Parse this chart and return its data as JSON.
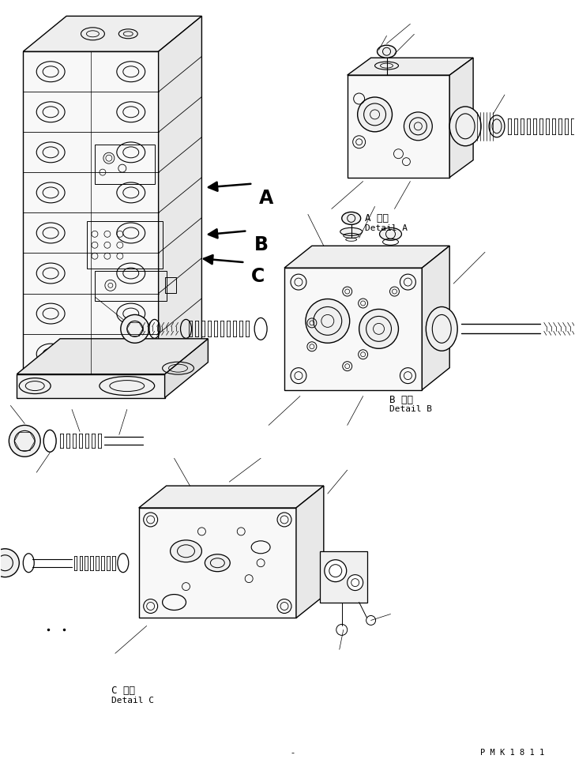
{
  "background_color": "#ffffff",
  "fig_width": 7.28,
  "fig_height": 9.62,
  "dpi": 100,
  "label_A_japanese": "A 詳細",
  "label_A_english": "Detail A",
  "label_B_japanese": "B 詳細",
  "label_B_english": "Detail B",
  "label_C_japanese": "C 詳細",
  "label_C_english": "Detail C",
  "watermark": "P M K 1 8 1 1",
  "line_color": "#000000",
  "line_width": 0.7
}
